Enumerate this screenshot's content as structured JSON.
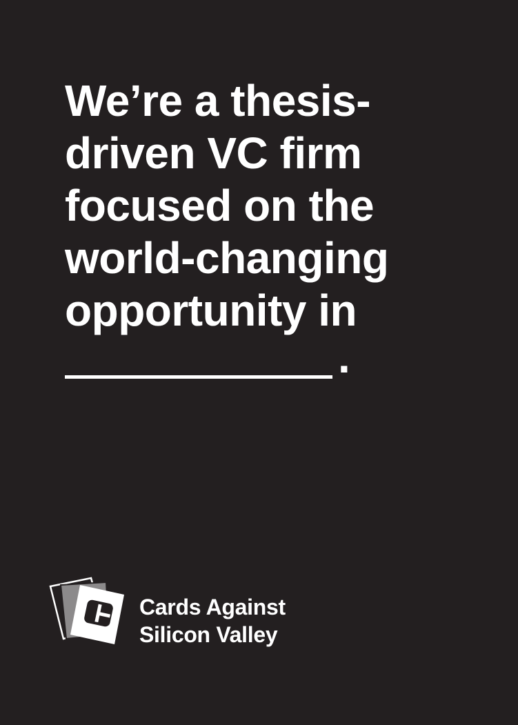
{
  "card": {
    "prompt_lines": [
      "We’re a thesis-",
      "driven VC firm",
      "focused on the",
      "world-changing",
      "opportunity in"
    ],
    "blank_suffix": ".",
    "colors": {
      "background": "#231f20",
      "text": "#ffffff"
    }
  },
  "brand": {
    "line1": "Cards Against",
    "line2": "Silicon Valley",
    "logo_icon": "stacked-cards-logo-icon"
  }
}
